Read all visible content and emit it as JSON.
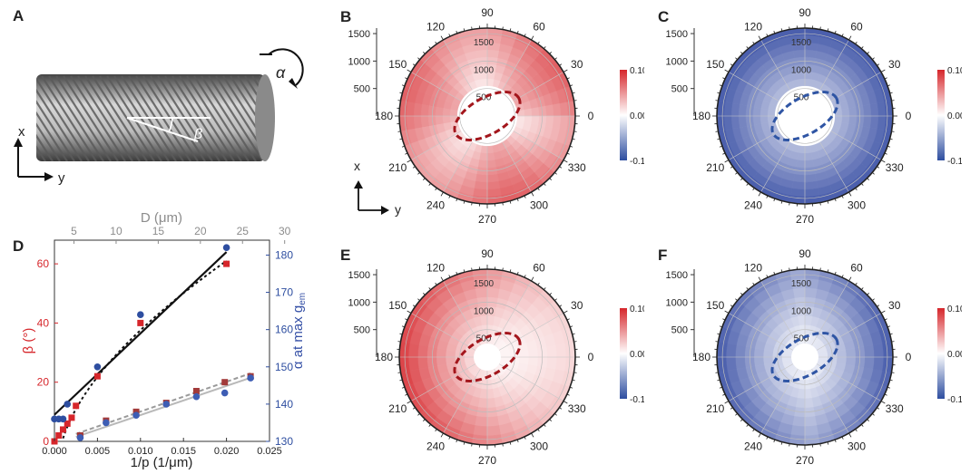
{
  "panel_labels": {
    "a": "A",
    "b": "B",
    "c": "C",
    "d": "D",
    "e": "E",
    "f": "F"
  },
  "panel_a": {
    "axis_x": "x",
    "axis_y": "y",
    "alpha": "α",
    "beta": "β",
    "fiber_color": "#7f7f7f"
  },
  "axes_inset": {
    "x": "x",
    "y": "y"
  },
  "colors": {
    "red": "#d6262b",
    "blue": "#2e4ea0",
    "black": "#111111",
    "gray": "#9a9a9a",
    "ellipse_red": "#a3161c",
    "ellipse_blue": "#2f55a4"
  },
  "chart_data": [
    {
      "type": "scatter",
      "panel": "D",
      "xlabel": "1/p (1/μm)",
      "top_xlabel": "D (μm)",
      "ylabel_left": "β (°)",
      "ylabel_right": "α at max g",
      "ylabel_right_sub": "em",
      "xlim": [
        0,
        0.025
      ],
      "ylim_left": [
        0,
        68
      ],
      "ylim_right": [
        130,
        184
      ],
      "xticks": [
        "0.000",
        "0.005",
        "0.010",
        "0.015",
        "0.020",
        "0.025"
      ],
      "yticks_left": [
        "0",
        "20",
        "40",
        "60"
      ],
      "yticks_right": [
        "130",
        "140",
        "150",
        "160",
        "170",
        "180"
      ],
      "top_ticks": [
        "5",
        "10",
        "15",
        "20",
        "25",
        "30"
      ],
      "series": [
        {
          "color": "red",
          "marker": "square",
          "axis": "left",
          "x": [
            0,
            0.0005,
            0.001,
            0.0015,
            0.002,
            0.0025,
            0.005,
            0.01,
            0.02
          ],
          "y": [
            0,
            2,
            4,
            6,
            8,
            12,
            22,
            40,
            60
          ]
        },
        {
          "color": "blue",
          "marker": "circle",
          "axis": "right",
          "x": [
            0,
            0.0005,
            0.001,
            0.0015,
            0.005,
            0.01,
            0.02
          ],
          "y": [
            136,
            136,
            136,
            140,
            150,
            164,
            182
          ]
        },
        {
          "color": "red",
          "marker": "square",
          "axis": "left",
          "x": [
            0.003,
            0.006,
            0.0095,
            0.013,
            0.0165,
            0.0198,
            0.0228
          ],
          "y": [
            2,
            7,
            10,
            13,
            17,
            20,
            22
          ]
        },
        {
          "color": "blue",
          "marker": "circle",
          "axis": "right",
          "x": [
            0.003,
            0.006,
            0.0095,
            0.013,
            0.0165,
            0.0198,
            0.0228
          ],
          "y": [
            131,
            135,
            137,
            140,
            142,
            143,
            147
          ]
        }
      ]
    },
    {
      "type": "heatmap",
      "panel": "B",
      "projection": "polar",
      "angle_ticks": [
        "0",
        "30",
        "60",
        "90",
        "120",
        "150",
        "180",
        "210",
        "240",
        "270",
        "300",
        "330"
      ],
      "radial_ticks": [
        "500",
        "1000",
        "1500"
      ],
      "colorbar_ticks": [
        "0.10",
        "0.00",
        "-0.10"
      ],
      "colorbar_range": [
        -0.1,
        0.1
      ],
      "inner_radius": 550,
      "outer_radius": 1600
    },
    {
      "type": "heatmap",
      "panel": "C",
      "projection": "polar",
      "angle_ticks": [
        "0",
        "30",
        "60",
        "90",
        "120",
        "150",
        "180",
        "210",
        "240",
        "270",
        "300",
        "330"
      ],
      "radial_ticks": [
        "500",
        "1000",
        "1500"
      ],
      "colorbar_ticks": [
        "0.10",
        "0.00",
        "-0.10"
      ],
      "colorbar_range": [
        -0.1,
        0.1
      ],
      "inner_radius": 550,
      "outer_radius": 1600
    },
    {
      "type": "heatmap",
      "panel": "E",
      "projection": "polar",
      "angle_ticks": [
        "0",
        "30",
        "60",
        "90",
        "120",
        "150",
        "180",
        "210",
        "240",
        "270",
        "300",
        "330"
      ],
      "radial_ticks": [
        "500",
        "1000",
        "1500"
      ],
      "colorbar_ticks": [
        "0.10",
        "0.00",
        "-0.10"
      ],
      "colorbar_range": [
        -0.1,
        0.1
      ],
      "inner_radius": 250,
      "outer_radius": 1600
    },
    {
      "type": "heatmap",
      "panel": "F",
      "projection": "polar",
      "angle_ticks": [
        "0",
        "30",
        "60",
        "90",
        "120",
        "150",
        "180",
        "210",
        "240",
        "270",
        "300",
        "330"
      ],
      "radial_ticks": [
        "500",
        "1000",
        "1500"
      ],
      "colorbar_ticks": [
        "0.10",
        "0.00",
        "-0.10"
      ],
      "colorbar_range": [
        -0.1,
        0.1
      ],
      "inner_radius": 250,
      "outer_radius": 1600
    }
  ]
}
